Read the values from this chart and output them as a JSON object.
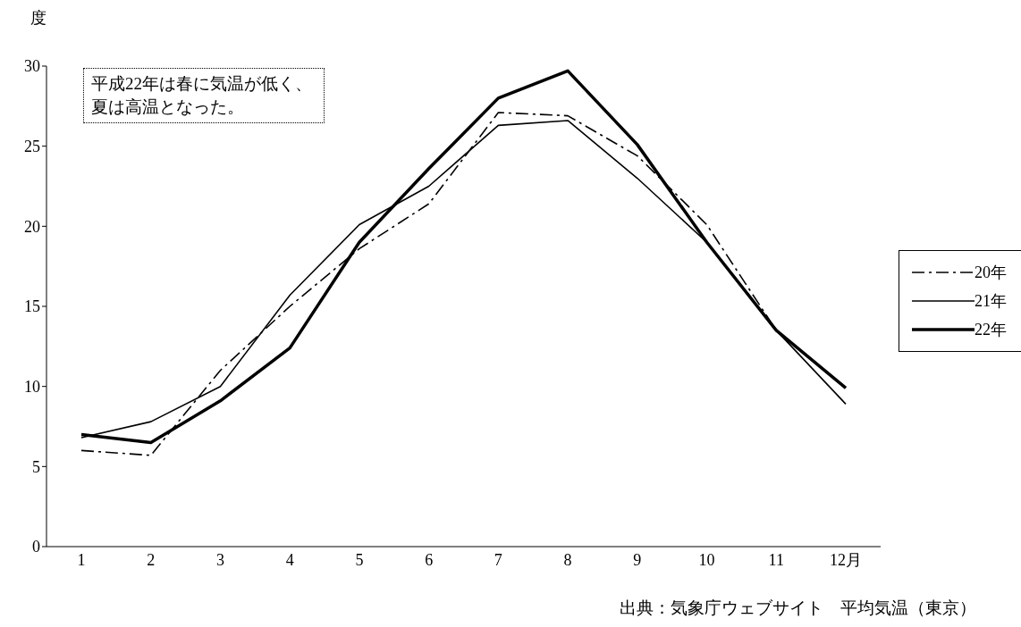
{
  "chart_data": {
    "type": "line",
    "ylabel": "度",
    "categories": [
      "1",
      "2",
      "3",
      "4",
      "5",
      "6",
      "7",
      "8",
      "9",
      "10",
      "11",
      "12月"
    ],
    "series": [
      {
        "name": "20年",
        "color": "#000000",
        "line_style": "dashdot",
        "values": [
          6.0,
          5.7,
          11.0,
          15.0,
          18.6,
          21.4,
          27.1,
          26.9,
          24.4,
          20.1,
          13.5,
          9.9
        ]
      },
      {
        "name": "21年",
        "color": "#000000",
        "line_style": "solid",
        "values": [
          6.8,
          7.8,
          10.0,
          15.7,
          20.1,
          22.5,
          26.3,
          26.6,
          23.0,
          19.0,
          13.5,
          8.9
        ]
      },
      {
        "name": "22年",
        "color": "#000000",
        "line_style": "solid",
        "values": [
          7.0,
          6.5,
          9.1,
          12.4,
          19.0,
          23.6,
          28.0,
          29.7,
          25.1,
          19.0,
          13.5,
          9.9
        ]
      }
    ],
    "ylim": [
      0,
      30
    ],
    "yticks": [
      0,
      5,
      10,
      15,
      20,
      25,
      30
    ],
    "grid": false,
    "legend": "right",
    "marker": "none",
    "annotations": [
      "平成22年は春に気温が低く、夏は高温となった。",
      "出典：気象庁ウェブサイト　平均気温（東京）"
    ]
  }
}
